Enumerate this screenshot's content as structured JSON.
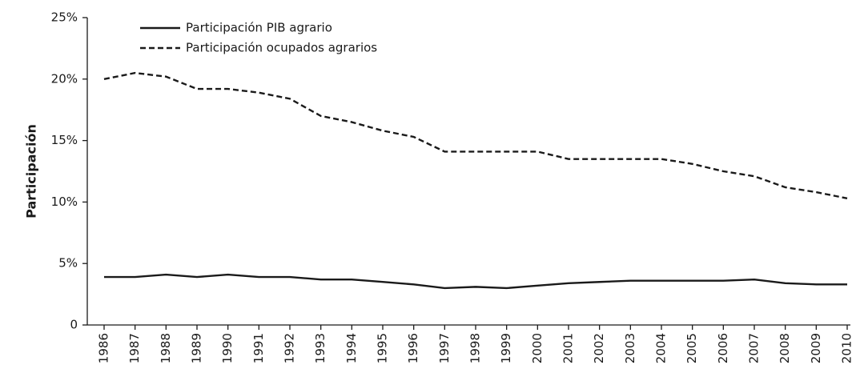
{
  "chart_data": {
    "type": "line",
    "y_label": "Participación",
    "categories": [
      "1986",
      "1987",
      "1988",
      "1989",
      "1990",
      "1991",
      "1992",
      "1993",
      "1994",
      "1995",
      "1996",
      "1997",
      "1998",
      "1999",
      "2000",
      "2001",
      "2002",
      "2003",
      "2004",
      "2005",
      "2006",
      "2007",
      "2008",
      "2009",
      "2010"
    ],
    "series": [
      {
        "name": "Participación PIB agrario",
        "color": "#1a1a1a",
        "dash": "solid",
        "values": [
          3.9,
          3.9,
          4.1,
          3.9,
          4.1,
          3.9,
          3.9,
          3.7,
          3.7,
          3.5,
          3.3,
          3.0,
          3.1,
          3.0,
          3.2,
          3.4,
          3.5,
          3.6,
          3.6,
          3.6,
          3.6,
          3.7,
          3.4,
          3.3,
          3.3
        ]
      },
      {
        "name": "Participación ocupados agrarios",
        "color": "#1a1a1a",
        "dash": "dashed",
        "values": [
          20.0,
          20.5,
          20.2,
          19.2,
          19.2,
          18.9,
          18.4,
          17.0,
          16.5,
          15.8,
          15.3,
          14.1,
          14.1,
          14.1,
          14.1,
          13.5,
          13.5,
          13.5,
          13.5,
          13.1,
          12.5,
          12.1,
          11.2,
          10.8,
          10.3
        ]
      }
    ],
    "ylim": [
      0,
      25
    ],
    "yticks": [
      0,
      {
        "value": 5,
        "label": "5%"
      },
      {
        "value": 10,
        "label": "10%"
      },
      {
        "value": 15,
        "label": "15%"
      },
      {
        "value": 20,
        "label": "20%"
      },
      {
        "value": 25,
        "label": "25%"
      }
    ],
    "grid": false,
    "legend": "top-left"
  }
}
